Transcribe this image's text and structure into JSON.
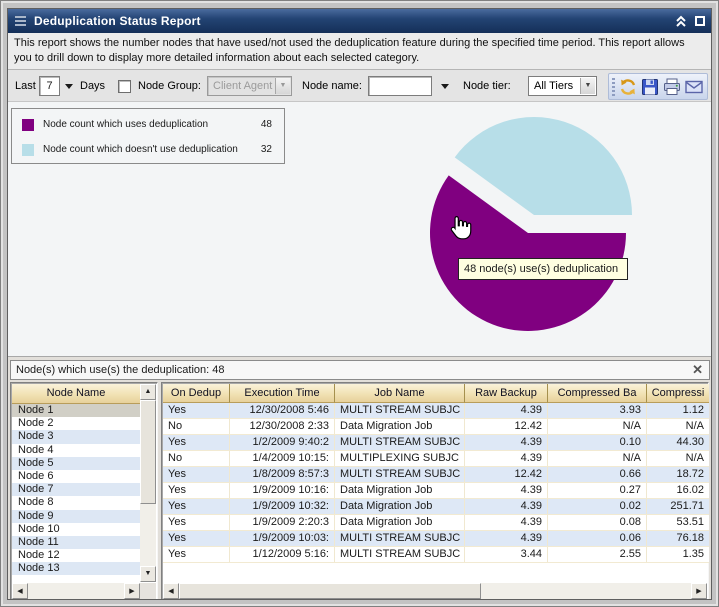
{
  "window": {
    "title": "Deduplication Status Report",
    "description": "This report shows the number nodes that have used/not used the deduplication feature during the specified time period. This report allows you to drill down to display more detailed information about each selected category."
  },
  "toolbar": {
    "last_label": "Last",
    "period_value": "7",
    "days_label": "Days",
    "node_group_label": "Node Group:",
    "node_group_value": "Client Agent",
    "node_name_label": "Node name:",
    "node_name_value": "",
    "node_tier_label": "Node tier:",
    "node_tier_value": "All Tiers"
  },
  "legend": {
    "items": [
      {
        "label": "Node count which uses deduplication",
        "value": "48",
        "color": "#800080"
      },
      {
        "label": "Node count which doesn't use deduplication",
        "value": "32",
        "color": "#b7dee8"
      }
    ]
  },
  "chart_data": {
    "type": "pie",
    "title": "Deduplication Status Report",
    "labels": [
      "Node count which uses deduplication",
      "Node count which doesn't use deduplication"
    ],
    "values": [
      48,
      32
    ],
    "colors": [
      "#800080",
      "#b7dee8"
    ],
    "total": 80,
    "exploded_index": 1,
    "legend_position": "top-left"
  },
  "tooltip": {
    "text": "48 node(s) use(s) deduplication"
  },
  "icons": {
    "close": "✕",
    "up": "▲",
    "down": "▼",
    "left": "◀",
    "right": "▶",
    "dropdown": "▼"
  },
  "detail_panel": {
    "title": "Node(s) which use(s) the deduplication: 48",
    "node_list": {
      "header": "Node Name",
      "selected": "Node 1",
      "items": [
        "Node 1",
        "Node 2",
        "Node 3",
        "Node 4",
        "Node 5",
        "Node 6",
        "Node 7",
        "Node 8",
        "Node 9",
        "Node 10",
        "Node 11",
        "Node 12",
        "Node 13"
      ]
    },
    "table": {
      "columns": [
        "On Dedup",
        "Execution Time",
        "Job Name",
        "Raw Backup",
        "Compressed Ba",
        "Compressi"
      ],
      "rows": [
        [
          "Yes",
          "12/30/2008 5:46",
          "MULTI STREAM SUBJC",
          "4.39",
          "3.93",
          "1.12"
        ],
        [
          "No",
          "12/30/2008 2:33",
          "Data Migration Job",
          "12.42",
          "N/A",
          "N/A"
        ],
        [
          "Yes",
          "1/2/2009 9:40:2",
          "MULTI STREAM SUBJC",
          "4.39",
          "0.10",
          "44.30"
        ],
        [
          "No",
          "1/4/2009 10:15:",
          "MULTIPLEXING SUBJC",
          "4.39",
          "N/A",
          "N/A"
        ],
        [
          "Yes",
          "1/8/2009 8:57:3",
          "MULTI STREAM SUBJC",
          "12.42",
          "0.66",
          "18.72"
        ],
        [
          "Yes",
          "1/9/2009 10:16:",
          "Data Migration Job",
          "4.39",
          "0.27",
          "16.02"
        ],
        [
          "Yes",
          "1/9/2009 10:32:",
          "Data Migration Job",
          "4.39",
          "0.02",
          "251.71"
        ],
        [
          "Yes",
          "1/9/2009 2:20:3",
          "Data Migration Job",
          "4.39",
          "0.08",
          "53.51"
        ],
        [
          "Yes",
          "1/9/2009 10:03:",
          "MULTI STREAM SUBJC",
          "4.39",
          "0.06",
          "76.18"
        ],
        [
          "Yes",
          "1/12/2009 5:16:",
          "MULTI STREAM SUBJC",
          "3.44",
          "2.55",
          "1.35"
        ]
      ]
    }
  }
}
